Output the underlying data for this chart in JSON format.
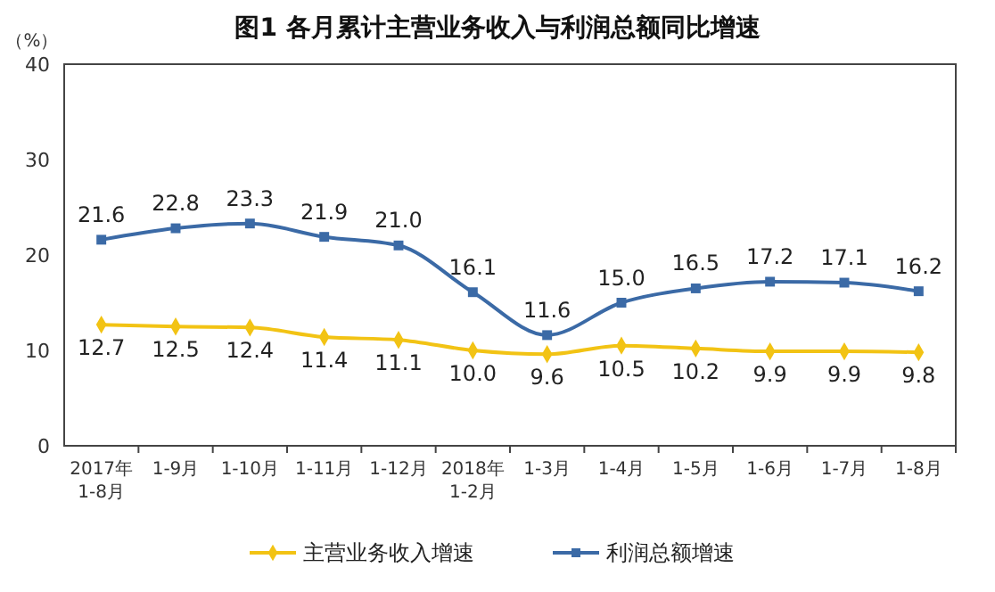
{
  "chart_data": {
    "type": "line",
    "title": "图1  各月累计主营业务收入与利润总额同比增速",
    "ylabel": "（%）",
    "categories": [
      "2017年\n1-8月",
      "1-9月",
      "1-10月",
      "1-11月",
      "1-12月",
      "2018年\n1-2月",
      "1-3月",
      "1-4月",
      "1-5月",
      "1-6月",
      "1-7月",
      "1-8月"
    ],
    "series": [
      {
        "name": "主营业务收入增速",
        "color": "#f2c314",
        "marker": "diamond",
        "values": [
          12.7,
          12.5,
          12.4,
          11.4,
          11.1,
          10.0,
          9.6,
          10.5,
          10.2,
          9.9,
          9.9,
          9.8
        ],
        "value_labels": [
          "12.7",
          "12.5",
          "12.4",
          "11.4",
          "11.1",
          "10.0",
          "9.6",
          "10.5",
          "10.2",
          "9.9",
          "9.9",
          "9.8"
        ]
      },
      {
        "name": "利润总额增速",
        "color": "#3b6aa6",
        "marker": "square",
        "values": [
          21.6,
          22.8,
          23.3,
          21.9,
          21.0,
          16.1,
          11.6,
          15.0,
          16.5,
          17.2,
          17.1,
          16.2
        ],
        "value_labels": [
          "21.6",
          "22.8",
          "23.3",
          "21.9",
          "21.0",
          "16.1",
          "11.6",
          "15.0",
          "16.5",
          "17.2",
          "17.1",
          "16.2"
        ]
      }
    ],
    "ylim": [
      0,
      40
    ],
    "yticks": [
      0,
      10,
      20,
      30,
      40
    ],
    "grid": false,
    "legend": "bottom"
  }
}
